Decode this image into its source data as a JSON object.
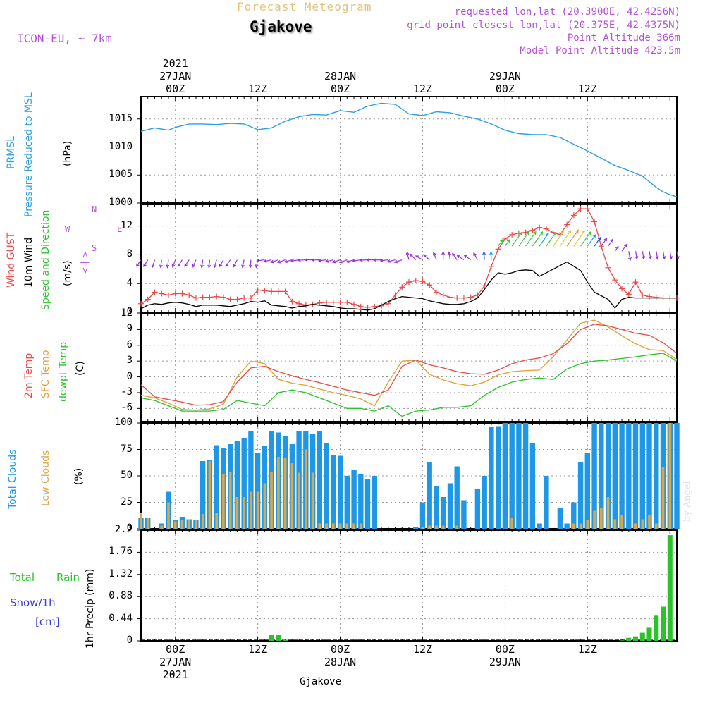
{
  "header": {
    "title": "Forecast Meteogram",
    "location": "Gjakove",
    "model": "ICON-EU, ~ 7km",
    "requested": "requested lon,lat (20.3900E, 42.4256N)",
    "grid_point": "grid point closest lon,lat (20.375E, 42.4375N)",
    "point_altitude": "Point Altitude 366m",
    "model_altitude": "Model Point Altitude 423.5m",
    "footer_location": "Gjakove",
    "signature": "by Angel"
  },
  "time_axis": {
    "top_labels": [
      {
        "t": 0,
        "lines": [
          "2021",
          "27JAN",
          "00Z"
        ]
      },
      {
        "t": 12,
        "lines": [
          "12Z"
        ]
      },
      {
        "t": 24,
        "lines": [
          "28JAN",
          "00Z"
        ]
      },
      {
        "t": 36,
        "lines": [
          "12Z"
        ]
      },
      {
        "t": 48,
        "lines": [
          "29JAN",
          "00Z"
        ]
      },
      {
        "t": 60,
        "lines": [
          "12Z"
        ]
      }
    ],
    "bottom_labels": [
      {
        "t": 0,
        "lines": [
          "00Z",
          "27JAN",
          "2021"
        ]
      },
      {
        "t": 12,
        "lines": [
          "12Z"
        ]
      },
      {
        "t": 24,
        "lines": [
          "00Z",
          "28JAN"
        ]
      },
      {
        "t": 36,
        "lines": [
          "12Z"
        ]
      },
      {
        "t": 48,
        "lines": [
          "00Z",
          "29JAN"
        ]
      },
      {
        "t": 60,
        "lines": [
          "12Z"
        ]
      }
    ]
  },
  "colors": {
    "pressure": "#2aa0e6",
    "gust": "#e84a4a",
    "wind": "#000000",
    "temp2m": "#e84a4a",
    "sfc": "#e0a030",
    "dew": "#2cc22c",
    "total_clouds": "#1e98e6",
    "low_clouds": "#d9a84a",
    "rain": "#2cc22c",
    "snow": "#3c3cdc",
    "purple": "#b451d6",
    "grid": "#999999"
  },
  "panel_labels": {
    "pressure": [
      "PRMSL",
      "Pressure Reduced to MSL",
      "(hPa)"
    ],
    "wind": [
      "Wind GUST",
      "10m Wind",
      "Speed and Direction",
      "(m/s)"
    ],
    "compass": [
      "N",
      "<-|->",
      "S",
      "W",
      "E"
    ],
    "temp": [
      "2m Temp",
      "SFC Temp",
      "dewpt Temp",
      "(C)"
    ],
    "clouds": [
      "Total Clouds",
      "Low Clouds",
      "(%)"
    ],
    "precip": [
      "Total",
      "Rain",
      "Snow/1h",
      "[cm]",
      "1hr Precip (mm)"
    ]
  },
  "chart_data": [
    {
      "type": "line",
      "name": "pressure",
      "series_label": "PRMSL",
      "ylabel": "(hPa)",
      "yticks": [
        1000,
        1005,
        1010,
        1015
      ],
      "ylim": [
        1000,
        1019
      ],
      "grid": true,
      "x": [
        -5,
        -3,
        -1,
        0,
        2,
        4,
        6,
        8,
        10,
        12,
        14,
        16,
        18,
        20,
        22,
        24,
        26,
        28,
        30,
        32,
        34,
        36,
        38,
        40,
        42,
        44,
        46,
        48,
        50,
        52,
        54,
        56,
        58,
        60,
        62,
        64,
        66,
        68,
        70,
        71,
        72,
        73
      ],
      "values": [
        1012.8,
        1013.4,
        1013.0,
        1013.5,
        1014.1,
        1014.1,
        1014.0,
        1014.2,
        1014.1,
        1013.1,
        1013.4,
        1014.6,
        1015.4,
        1015.8,
        1015.7,
        1016.5,
        1016.2,
        1017.3,
        1017.8,
        1017.6,
        1015.9,
        1015.6,
        1016.3,
        1016.1,
        1015.5,
        1015.0,
        1014.1,
        1013.0,
        1012.4,
        1012.2,
        1012.2,
        1011.7,
        1010.5,
        1009.3,
        1008.0,
        1006.7,
        1005.8,
        1004.8,
        1002.8,
        1002.0,
        1001.5,
        1001.1
      ]
    },
    {
      "type": "line",
      "name": "wind",
      "ylabel": "(m/s)",
      "yticks": [
        0,
        4,
        8,
        12
      ],
      "ylim": [
        0,
        15
      ],
      "grid": true,
      "x": [
        -5,
        -4,
        -3,
        -2,
        -1,
        0,
        1,
        2,
        3,
        4,
        5,
        6,
        7,
        8,
        9,
        10,
        11,
        12,
        13,
        14,
        15,
        16,
        17,
        18,
        19,
        20,
        21,
        22,
        23,
        24,
        25,
        26,
        27,
        28,
        29,
        30,
        31,
        32,
        33,
        34,
        35,
        36,
        37,
        38,
        39,
        40,
        41,
        42,
        43,
        44,
        45,
        46,
        47,
        48,
        49,
        50,
        51,
        52,
        53,
        54,
        55,
        56,
        57,
        58,
        59,
        60,
        61,
        62,
        63,
        64,
        65,
        66,
        67,
        68,
        69,
        70,
        71,
        72,
        73
      ],
      "series": [
        {
          "name": "Wind GUST",
          "values": [
            1.2,
            1.8,
            2.8,
            2.6,
            2.4,
            2.6,
            2.6,
            2.4,
            2.0,
            2.1,
            2.1,
            2.2,
            2.1,
            1.8,
            1.8,
            2.0,
            2.0,
            3.1,
            3.0,
            2.9,
            2.9,
            2.9,
            1.5,
            1.2,
            1.0,
            1.1,
            1.3,
            1.4,
            1.4,
            1.4,
            1.4,
            1.1,
            0.8,
            0.7,
            0.8,
            0.9,
            1.2,
            2.4,
            3.5,
            4.2,
            4.4,
            4.3,
            3.8,
            2.8,
            2.4,
            2.1,
            2.0,
            2.0,
            2.1,
            2.4,
            3.7,
            6.4,
            8.8,
            10.2,
            10.8,
            11.0,
            11.1,
            11.4,
            11.8,
            11.6,
            11.1,
            10.8,
            12.2,
            13.5,
            14.4,
            14.4,
            12.6,
            9.2,
            6.2,
            4.5,
            3.3,
            2.5,
            4.2,
            2.4,
            2.2,
            2.1,
            2.0,
            2.0,
            2.0
          ]
        },
        {
          "name": "10m Wind",
          "values": [
            0.5,
            1.0,
            1.2,
            1.1,
            1.3,
            1.4,
            1.3,
            1.1,
            0.8,
            1.0,
            1.0,
            1.0,
            0.9,
            0.8,
            1.0,
            1.2,
            1.5,
            1.4,
            1.6,
            1.0,
            0.9,
            0.8,
            0.6,
            0.8,
            0.9,
            1.1,
            1.0,
            0.9,
            0.8,
            0.6,
            0.5,
            0.5,
            0.4,
            0.3,
            0.5,
            1.0,
            1.5,
            1.9,
            2.2,
            2.1,
            2.0,
            1.9,
            1.6,
            1.4,
            1.2,
            1.1,
            1.1,
            1.2,
            1.5,
            2.0,
            3.2,
            4.5,
            5.5,
            5.3,
            5.5,
            5.8,
            5.9,
            5.8,
            5.0,
            5.5,
            6.0,
            6.5,
            7.0,
            6.4,
            5.8,
            4.2,
            2.8,
            2.3,
            1.8,
            0.6,
            1.8,
            2.1,
            2.0,
            2.0,
            2.0,
            2.0,
            2.0,
            2.0,
            2.0
          ]
        }
      ]
    },
    {
      "type": "line",
      "name": "temperature",
      "ylabel": "(C)",
      "yticks": [
        -6,
        -3,
        0,
        3,
        6,
        9,
        12
      ],
      "ylim": [
        -8.5,
        12
      ],
      "grid": true,
      "x": [
        -5,
        -3,
        -1,
        1,
        3,
        5,
        7,
        9,
        11,
        13,
        15,
        17,
        19,
        21,
        23,
        25,
        27,
        29,
        31,
        33,
        35,
        37,
        39,
        41,
        43,
        45,
        47,
        49,
        51,
        53,
        55,
        57,
        59,
        61,
        63,
        65,
        67,
        69,
        71,
        73
      ],
      "series": [
        {
          "name": "2m Temp",
          "values": [
            -1.5,
            -3.8,
            -4.3,
            -4.8,
            -5.4,
            -5.3,
            -4.7,
            -1.0,
            1.7,
            2.0,
            1.0,
            0.2,
            -0.5,
            -1.1,
            -1.8,
            -2.5,
            -3.0,
            -3.5,
            -2.5,
            2.0,
            3.2,
            2.3,
            1.7,
            1.0,
            0.6,
            0.5,
            1.3,
            2.5,
            3.2,
            3.6,
            4.4,
            6.3,
            9.0,
            10.0,
            9.7,
            9.0,
            8.3,
            7.9,
            6.5,
            4.5
          ]
        },
        {
          "name": "SFC Temp",
          "values": [
            -3.5,
            -4.0,
            -5.0,
            -6.2,
            -6.3,
            -6.1,
            -5.2,
            0.0,
            3.0,
            2.5,
            -0.5,
            -1.2,
            -1.6,
            -2.3,
            -3.0,
            -3.5,
            -4.2,
            -5.5,
            -1.0,
            3.0,
            3.2,
            0.5,
            -0.6,
            -1.3,
            -1.7,
            -1.0,
            0.4,
            1.0,
            1.2,
            1.3,
            3.8,
            7.0,
            10.2,
            10.8,
            9.5,
            7.8,
            6.3,
            5.2,
            5.0,
            3.3
          ]
        },
        {
          "name": "dewpt Temp",
          "values": [
            -4.0,
            -4.5,
            -5.5,
            -6.5,
            -6.5,
            -6.5,
            -6.2,
            -4.5,
            -5.0,
            -5.5,
            -3.0,
            -2.5,
            -3.0,
            -4.0,
            -5.0,
            -6.0,
            -6.0,
            -6.5,
            -5.5,
            -7.5,
            -6.5,
            -6.3,
            -5.8,
            -5.8,
            -5.5,
            -3.5,
            -2.0,
            -1.0,
            -0.5,
            -0.2,
            -0.5,
            1.5,
            2.5,
            3.0,
            3.2,
            3.5,
            3.8,
            4.2,
            4.5,
            3.0
          ]
        }
      ]
    },
    {
      "type": "bar",
      "name": "clouds",
      "ylabel": "(%)",
      "yticks": [
        0,
        25,
        50,
        75,
        100
      ],
      "ylim": [
        0,
        100
      ],
      "grid": true,
      "x": [
        -5,
        -4,
        -3,
        -2,
        -1,
        0,
        1,
        2,
        3,
        4,
        5,
        6,
        7,
        8,
        9,
        10,
        11,
        12,
        13,
        14,
        15,
        16,
        17,
        18,
        19,
        20,
        21,
        22,
        23,
        24,
        25,
        26,
        27,
        28,
        29,
        30,
        31,
        32,
        33,
        34,
        35,
        36,
        37,
        38,
        39,
        40,
        41,
        42,
        43,
        44,
        45,
        46,
        47,
        48,
        49,
        50,
        51,
        52,
        53,
        54,
        55,
        56,
        57,
        58,
        59,
        60,
        61,
        62,
        63,
        64,
        65,
        66,
        67,
        68,
        69,
        70,
        71,
        72,
        73
      ],
      "series": [
        {
          "name": "Total Clouds",
          "values": [
            10,
            10,
            0,
            5,
            35,
            8,
            11,
            9,
            8,
            64,
            65,
            79,
            76,
            80,
            83,
            86,
            92,
            72,
            78,
            92,
            91,
            88,
            80,
            92,
            92,
            90,
            92,
            81,
            70,
            69,
            50,
            56,
            52,
            47,
            50,
            0,
            0,
            0,
            0,
            0,
            2,
            25,
            63,
            40,
            30,
            43,
            59,
            27,
            0,
            38,
            50,
            96,
            97,
            100,
            100,
            100,
            100,
            81,
            5,
            50,
            0,
            20,
            5,
            25,
            63,
            72,
            100,
            100,
            100,
            100,
            100,
            100,
            100,
            100,
            100,
            100,
            100,
            100,
            100
          ]
        },
        {
          "name": "Low Clouds",
          "values": [
            15,
            10,
            0,
            3,
            25,
            7,
            8,
            9,
            8,
            14,
            64,
            15,
            52,
            54,
            30,
            30,
            35,
            35,
            43,
            54,
            68,
            67,
            62,
            53,
            75,
            53,
            5,
            5,
            5,
            5,
            5,
            5,
            5,
            0,
            0,
            0,
            0,
            0,
            0,
            0,
            0,
            2,
            3,
            3,
            3,
            0,
            3,
            0,
            0,
            0,
            0,
            0,
            0,
            0,
            10,
            0,
            0,
            0,
            0,
            0,
            0,
            0,
            0,
            5,
            5,
            8,
            17,
            20,
            30,
            9,
            13,
            0,
            5,
            9,
            13,
            5,
            58,
            100,
            0
          ]
        }
      ]
    },
    {
      "type": "bar",
      "name": "precipitation",
      "ylabel": "1hr Precip (mm)",
      "yticks": [
        0,
        0.44,
        0.88,
        1.32,
        1.76,
        2.2
      ],
      "ylim": [
        0,
        2.2
      ],
      "grid": true,
      "x": [
        14,
        15,
        16,
        17,
        18,
        65,
        66,
        67,
        68,
        69,
        70,
        71,
        72,
        73
      ],
      "series": [
        {
          "name": "Rain",
          "values": [
            0.12,
            0.12,
            0.02,
            0,
            0,
            0.01,
            0.06,
            0.09,
            0.16,
            0.26,
            0.5,
            0.68,
            2.1,
            0
          ]
        }
      ]
    }
  ]
}
